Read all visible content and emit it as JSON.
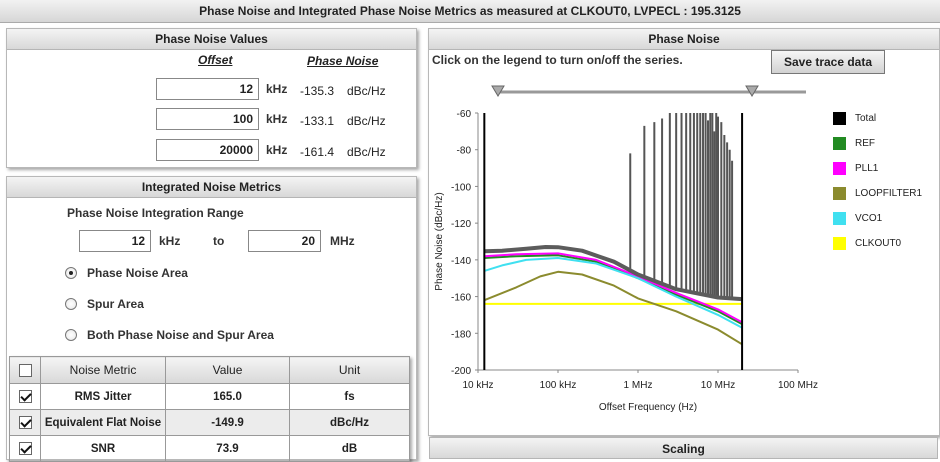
{
  "window": {
    "title": "Phase Noise and Integrated Phase Noise Metrics as measured at CLKOUT0, LVPECL : 195.3125"
  },
  "phase_noise_values": {
    "header": "Phase Noise Values",
    "col_offset": "Offset",
    "col_phase_noise": "Phase Noise",
    "rows": [
      {
        "offset": "12",
        "offset_unit": "kHz",
        "phase_noise": "-135.3",
        "pn_unit": "dBc/Hz"
      },
      {
        "offset": "100",
        "offset_unit": "kHz",
        "phase_noise": "-133.1",
        "pn_unit": "dBc/Hz"
      },
      {
        "offset": "20000",
        "offset_unit": "kHz",
        "phase_noise": "-161.4",
        "pn_unit": "dBc/Hz"
      }
    ]
  },
  "integrated": {
    "header": "Integrated Noise Metrics",
    "range_label": "Phase Noise Integration Range",
    "from_value": "12",
    "from_unit": "kHz",
    "to_label": "to",
    "to_value": "20",
    "to_unit": "MHz",
    "options": [
      {
        "label": "Phase Noise Area",
        "selected": true
      },
      {
        "label": "Spur Area",
        "selected": false
      },
      {
        "label": "Both Phase Noise and Spur Area",
        "selected": false
      }
    ],
    "table": {
      "headers": [
        "",
        "Noise Metric",
        "Value",
        "Unit"
      ],
      "rows": [
        {
          "checked": true,
          "metric": "RMS Jitter",
          "value": "165.0",
          "unit": "fs"
        },
        {
          "checked": true,
          "metric": "Equivalent Flat Noise",
          "value": "-149.9",
          "unit": "dBc/Hz"
        },
        {
          "checked": true,
          "metric": "SNR",
          "value": "73.9",
          "unit": "dB"
        }
      ]
    }
  },
  "chart_panel": {
    "header": "Phase Noise",
    "hint": "Click on the legend to turn on/off the series.",
    "save_button": "Save trace data",
    "scaling_header": "Scaling"
  },
  "chart_data": {
    "type": "line",
    "xlabel": "Offset Frequency (Hz)",
    "ylabel": "Phase Noise (dBc/Hz)",
    "x_scale": "log",
    "xlim": [
      10000,
      100000000
    ],
    "ylim": [
      -200,
      -60
    ],
    "x_ticks": [
      {
        "value": 10000,
        "label": "10 kHz"
      },
      {
        "value": 100000,
        "label": "100 kHz"
      },
      {
        "value": 1000000,
        "label": "1 MHz"
      },
      {
        "value": 10000000,
        "label": "10 MHz"
      },
      {
        "value": 100000000,
        "label": "100 MHz"
      }
    ],
    "y_ticks": [
      -60,
      -80,
      -100,
      -120,
      -140,
      -160,
      -180,
      -200
    ],
    "integration_markers": [
      12000,
      20000000
    ],
    "series": [
      {
        "name": "Total",
        "color": "#5c5c5c",
        "x": [
          12000,
          20000,
          40000,
          70000,
          100000,
          200000,
          500000,
          1000000,
          3000000,
          10000000,
          20000000
        ],
        "y": [
          -135.3,
          -135,
          -134,
          -133,
          -133.1,
          -135,
          -141,
          -148,
          -156,
          -160.5,
          -161.4
        ]
      },
      {
        "name": "REF",
        "color": "#228b22",
        "x": [
          12000,
          30000,
          100000,
          300000,
          1000000,
          3000000,
          10000000,
          20000000
        ],
        "y": [
          -139,
          -138,
          -137.5,
          -141,
          -150,
          -159,
          -168,
          -175
        ]
      },
      {
        "name": "PLL1",
        "color": "#ff00ff",
        "x": [
          12000,
          30000,
          100000,
          300000,
          1000000,
          3000000,
          10000000,
          20000000
        ],
        "y": [
          -138,
          -137,
          -136.5,
          -140,
          -149,
          -158,
          -167,
          -174
        ]
      },
      {
        "name": "LOOPFILTER1",
        "color": "#8b8b2e",
        "x": [
          12000,
          30000,
          60000,
          100000,
          200000,
          500000,
          1000000,
          3000000,
          10000000,
          20000000
        ],
        "y": [
          -162,
          -155,
          -149,
          -146.5,
          -148,
          -154,
          -161,
          -168,
          -178,
          -186
        ]
      },
      {
        "name": "VCO1",
        "color": "#40e0f0",
        "x": [
          12000,
          20000,
          40000,
          100000,
          300000,
          1000000,
          3000000,
          10000000,
          20000000
        ],
        "y": [
          -146,
          -143,
          -140,
          -139,
          -142,
          -150,
          -160,
          -170,
          -177
        ]
      },
      {
        "name": "CLKOUT0",
        "color": "#ffff00",
        "x": [
          12000,
          20000000
        ],
        "y": [
          -164,
          -164
        ]
      }
    ],
    "spurs": {
      "x": [
        800000,
        1200000,
        1600000,
        2000000,
        2500000,
        3000000,
        3500000,
        4000000,
        4500000,
        5000000,
        5500000,
        6000000,
        6500000,
        7000000,
        7500000,
        8000000,
        8500000,
        9000000,
        9500000,
        10000000,
        11000000,
        12000000,
        13000000,
        14000000,
        15000000
      ],
      "y": [
        -82,
        -67,
        -65,
        -63,
        -60,
        -60,
        -60,
        -60,
        -60,
        -60,
        -60,
        -60,
        -60,
        -60,
        -64,
        -60,
        -60,
        -70,
        -60,
        -62,
        -65,
        -72,
        -76,
        -80,
        -86
      ]
    }
  }
}
